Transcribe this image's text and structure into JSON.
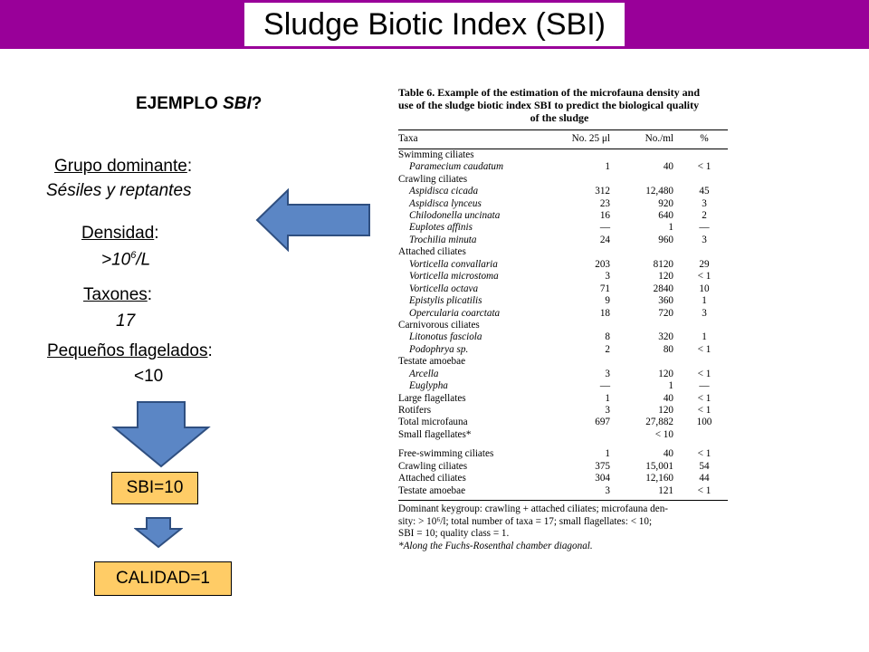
{
  "title": "Sludge Biotic Index (SBI)",
  "example_heading": {
    "text": "EJEMPLO ",
    "italic": "SBI",
    "suffix": "?"
  },
  "summary": {
    "dominant_label": "Grupo dominante",
    "dominant_value": "Sésiles y reptantes",
    "density_label": "Densidad",
    "density_value_prefix": ">10",
    "density_value_exp": "6",
    "density_value_suffix": "/L",
    "taxa_label": "Taxones",
    "taxa_value": "17",
    "flagellates_label": "Pequeños flagelados",
    "flagellates_value": "<10",
    "sbi_box": "SBI=10",
    "quality_box": "CALIDAD=1"
  },
  "colors": {
    "title_bar": "#990099",
    "arrow_fill": "#5b86c5",
    "arrow_stroke": "#2f4f80",
    "box_fill": "#ffcc66"
  },
  "table6": {
    "caption_line1": "Table 6. Example of the estimation of the microfauna density and",
    "caption_line2": "use of the sludge biotic index SBI to predict the biological quality",
    "caption_line3": "of the sludge",
    "headers": [
      "Taxa",
      "No. 25 μl",
      "No./ml",
      "%"
    ],
    "rows": [
      {
        "taxon": "Swimming ciliates",
        "type": "group"
      },
      {
        "taxon": "Paramecium caudatum",
        "n25": "1",
        "nml": "40",
        "pct": "< 1",
        "type": "species"
      },
      {
        "taxon": "Crawling ciliates",
        "type": "group"
      },
      {
        "taxon": "Aspidisca cicada",
        "n25": "312",
        "nml": "12,480",
        "pct": "45",
        "type": "species"
      },
      {
        "taxon": "Aspidisca lynceus",
        "n25": "23",
        "nml": "920",
        "pct": "3",
        "type": "species"
      },
      {
        "taxon": "Chilodonella uncinata",
        "n25": "16",
        "nml": "640",
        "pct": "2",
        "type": "species"
      },
      {
        "taxon": "Euplotes affinis",
        "n25": "—",
        "nml": "1",
        "pct": "—",
        "type": "species"
      },
      {
        "taxon": "Trochilia minuta",
        "n25": "24",
        "nml": "960",
        "pct": "3",
        "type": "species"
      },
      {
        "taxon": "Attached ciliates",
        "type": "group"
      },
      {
        "taxon": "Vorticella convallaria",
        "n25": "203",
        "nml": "8120",
        "pct": "29",
        "type": "species"
      },
      {
        "taxon": "Vorticella microstoma",
        "n25": "3",
        "nml": "120",
        "pct": "< 1",
        "type": "species"
      },
      {
        "taxon": "Vorticella octava",
        "n25": "71",
        "nml": "2840",
        "pct": "10",
        "type": "species"
      },
      {
        "taxon": "Epistylis plicatilis",
        "n25": "9",
        "nml": "360",
        "pct": "1",
        "type": "species"
      },
      {
        "taxon": "Opercularia coarctata",
        "n25": "18",
        "nml": "720",
        "pct": "3",
        "type": "species"
      },
      {
        "taxon": "Carnivorous ciliates",
        "type": "group"
      },
      {
        "taxon": "Litonotus fasciola",
        "n25": "8",
        "nml": "320",
        "pct": "1",
        "type": "species"
      },
      {
        "taxon": "Podophrya sp.",
        "n25": "2",
        "nml": "80",
        "pct": "< 1",
        "type": "species"
      },
      {
        "taxon": "Testate amoebae",
        "type": "group"
      },
      {
        "taxon": "Arcella",
        "n25": "3",
        "nml": "120",
        "pct": "< 1",
        "type": "species"
      },
      {
        "taxon": "Euglypha",
        "n25": "—",
        "nml": "1",
        "pct": "—",
        "type": "species"
      },
      {
        "taxon": "Large flagellates",
        "n25": "1",
        "nml": "40",
        "pct": "< 1",
        "type": "group"
      },
      {
        "taxon": "Rotifers",
        "n25": "3",
        "nml": "120",
        "pct": "< 1",
        "type": "group"
      },
      {
        "taxon": "Total microfauna",
        "n25": "697",
        "nml": "27,882",
        "pct": "100",
        "type": "group"
      },
      {
        "taxon": "Small flagellates*",
        "n25": "",
        "nml": "< 10",
        "pct": "",
        "type": "group"
      }
    ],
    "summary_rows": [
      {
        "taxon": "Free-swimming ciliates",
        "n25": "1",
        "nml": "40",
        "pct": "< 1"
      },
      {
        "taxon": "Crawling ciliates",
        "n25": "375",
        "nml": "15,001",
        "pct": "54"
      },
      {
        "taxon": "Attached ciliates",
        "n25": "304",
        "nml": "12,160",
        "pct": "44"
      },
      {
        "taxon": "Testate amoebae",
        "n25": "3",
        "nml": "121",
        "pct": "< 1"
      }
    ],
    "note_line1": "Dominant keygroup: crawling + attached ciliates; microfauna den-",
    "note_line2": "sity: > 10⁶/l; total number of taxa = 17; small flagellates: < 10;",
    "note_line3": "SBI = 10; quality class = 1.",
    "footnote": "*Along the Fuchs-Rosenthal chamber diagonal."
  }
}
